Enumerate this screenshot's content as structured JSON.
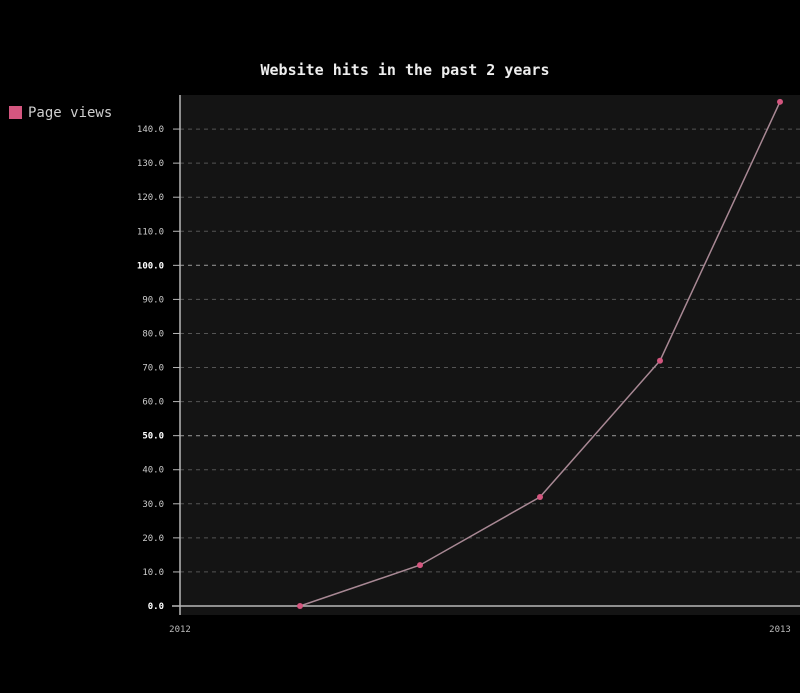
{
  "chart_data": {
    "type": "line",
    "title": "Website hits in the past 2 years",
    "series": [
      {
        "name": "Page views",
        "values": [
          0,
          12,
          32,
          72,
          148
        ]
      }
    ],
    "x_positions": [
      0.2,
      0.4,
      0.6,
      0.8,
      1.0
    ],
    "x_tick_labels": [
      "2012",
      "2013"
    ],
    "y_ticks": [
      "0.0",
      "10.0",
      "20.0",
      "30.0",
      "40.0",
      "50.0",
      "60.0",
      "70.0",
      "80.0",
      "90.0",
      "100.0",
      "110.0",
      "120.0",
      "130.0",
      "140.0"
    ],
    "ylim": [
      0,
      150
    ],
    "major_y_ticks": [
      0,
      50,
      100
    ],
    "grid": true,
    "legend_position": "top-left"
  },
  "colors": {
    "background": "#000000",
    "plot_background": "#141414",
    "series": "#d4567f",
    "line": "#a88894",
    "grid": "#555555",
    "grid_major": "#8a8a8a",
    "axis": "#b8b8b8"
  }
}
